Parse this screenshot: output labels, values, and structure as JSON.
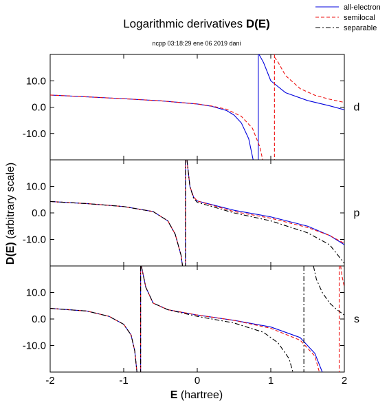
{
  "chart_data": {
    "type": "line",
    "title": "Logarithmic derivatives",
    "title_bold": "D(E)",
    "subtitle": "ncpp 03:18:29 ene 06 2019 dani",
    "xlabel_bold": "E",
    "xlabel_rest": " (hartree)",
    "ylabel_bold": "D(E)",
    "ylabel_rest": "  (arbitrary scale)",
    "xlim": [
      -2,
      2
    ],
    "ylim": [
      -20,
      20
    ],
    "x_ticks": [
      -2,
      -1,
      0,
      1,
      2
    ],
    "x_tick_labels": [
      "-2",
      "-1",
      "0",
      "1",
      "2"
    ],
    "y_ticks": [
      10,
      0,
      -10
    ],
    "y_tick_labels": [
      "10.0",
      "0.0",
      "-10.0"
    ],
    "legend_position": "top-right",
    "legend": [
      {
        "name": "all-electron",
        "color": "#0000dd",
        "dash": "solid"
      },
      {
        "name": "semilocal",
        "color": "#ee1111",
        "dash": "dashed"
      },
      {
        "name": "separable",
        "color": "#000000",
        "dash": "dashdot"
      }
    ],
    "panels": [
      {
        "label": "d",
        "series": [
          {
            "style": "all-electron",
            "points": [
              [
                -2,
                4.6
              ],
              [
                -1.5,
                3.9
              ],
              [
                -1,
                3.2
              ],
              [
                -0.5,
                2.4
              ],
              [
                0,
                1.2
              ],
              [
                0.2,
                0.3
              ],
              [
                0.4,
                -1.3
              ],
              [
                0.5,
                -3
              ],
              [
                0.6,
                -6
              ],
              [
                0.7,
                -12
              ],
              [
                0.76,
                -20
              ]
            ],
            "asymptote": 0.83
          },
          {
            "style": "all-electron",
            "points": [
              [
                0.84,
                20
              ],
              [
                0.9,
                17
              ],
              [
                1,
                10
              ],
              [
                1.2,
                5.5
              ],
              [
                1.5,
                2.5
              ],
              [
                1.8,
                0.5
              ],
              [
                2,
                -1
              ]
            ]
          },
          {
            "style": "semilocal",
            "points": [
              [
                -2,
                4.6
              ],
              [
                -1.5,
                3.9
              ],
              [
                -1,
                3.2
              ],
              [
                -0.5,
                2.4
              ],
              [
                0,
                1.2
              ],
              [
                0.2,
                0.4
              ],
              [
                0.4,
                -0.8
              ],
              [
                0.6,
                -3.5
              ],
              [
                0.75,
                -8
              ],
              [
                0.85,
                -15
              ],
              [
                0.89,
                -20
              ]
            ],
            "asymptote": 1.05
          },
          {
            "style": "semilocal",
            "points": [
              [
                1.05,
                19
              ],
              [
                1.1,
                17
              ],
              [
                1.2,
                12
              ],
              [
                1.4,
                7
              ],
              [
                1.6,
                4.5
              ],
              [
                1.8,
                3
              ],
              [
                2,
                1.8
              ]
            ]
          }
        ]
      },
      {
        "label": "p",
        "series": [
          {
            "style": "all-electron",
            "points": [
              [
                -2,
                4.3
              ],
              [
                -1.5,
                3.5
              ],
              [
                -1,
                2.4
              ],
              [
                -0.6,
                0.5
              ],
              [
                -0.4,
                -3
              ],
              [
                -0.3,
                -8
              ],
              [
                -0.22,
                -16
              ],
              [
                -0.2,
                -20
              ]
            ],
            "asymptote": -0.16
          },
          {
            "style": "all-electron",
            "points": [
              [
                -0.14,
                20
              ],
              [
                -0.1,
                10
              ],
              [
                -0.05,
                6
              ],
              [
                0,
                4.5
              ],
              [
                0.5,
                1
              ],
              [
                1,
                -1.5
              ],
              [
                1.5,
                -5
              ],
              [
                1.8,
                -8.5
              ],
              [
                2,
                -12
              ]
            ]
          },
          {
            "style": "semilocal",
            "points": [
              [
                -2,
                4.3
              ],
              [
                -1.5,
                3.5
              ],
              [
                -1,
                2.4
              ],
              [
                -0.6,
                0.5
              ],
              [
                -0.4,
                -3
              ],
              [
                -0.3,
                -8
              ],
              [
                -0.22,
                -16
              ],
              [
                -0.2,
                -20
              ]
            ],
            "asymptote": -0.16
          },
          {
            "style": "semilocal",
            "points": [
              [
                -0.14,
                20
              ],
              [
                -0.1,
                10
              ],
              [
                -0.05,
                6
              ],
              [
                0,
                4.5
              ],
              [
                0.5,
                0.5
              ],
              [
                1,
                -2
              ],
              [
                1.5,
                -5.5
              ],
              [
                1.8,
                -8.5
              ],
              [
                2,
                -11.5
              ]
            ]
          },
          {
            "style": "separable",
            "points": [
              [
                -2,
                4.3
              ],
              [
                -1.5,
                3.5
              ],
              [
                -1,
                2.4
              ],
              [
                -0.6,
                0.5
              ],
              [
                -0.4,
                -3
              ],
              [
                -0.3,
                -8
              ],
              [
                -0.22,
                -16
              ],
              [
                -0.2,
                -20
              ]
            ],
            "asymptote": -0.16
          },
          {
            "style": "separable",
            "points": [
              [
                -0.14,
                20
              ],
              [
                -0.1,
                10
              ],
              [
                -0.05,
                5.5
              ],
              [
                0,
                4
              ],
              [
                0.5,
                0
              ],
              [
                1,
                -3
              ],
              [
                1.5,
                -7.5
              ],
              [
                1.8,
                -12
              ],
              [
                2,
                -19
              ]
            ]
          }
        ]
      },
      {
        "label": "s",
        "series": [
          {
            "style": "all-electron",
            "points": [
              [
                -2,
                4
              ],
              [
                -1.5,
                3
              ],
              [
                -1.2,
                1
              ],
              [
                -1,
                -2
              ],
              [
                -0.9,
                -6
              ],
              [
                -0.85,
                -12
              ],
              [
                -0.82,
                -20
              ]
            ],
            "asymptote": -0.77
          },
          {
            "style": "all-electron",
            "points": [
              [
                -0.76,
                20
              ],
              [
                -0.7,
                12
              ],
              [
                -0.6,
                6
              ],
              [
                -0.4,
                3.5
              ],
              [
                0,
                1.5
              ],
              [
                0.5,
                -0.5
              ],
              [
                1,
                -3
              ],
              [
                1.4,
                -7
              ],
              [
                1.6,
                -13
              ],
              [
                1.7,
                -20
              ]
            ]
          },
          {
            "style": "semilocal",
            "points": [
              [
                -2,
                4
              ],
              [
                -1.5,
                3
              ],
              [
                -1.2,
                1
              ],
              [
                -1,
                -2
              ],
              [
                -0.9,
                -6
              ],
              [
                -0.85,
                -12
              ],
              [
                -0.82,
                -20
              ]
            ],
            "asymptote": -0.77
          },
          {
            "style": "semilocal",
            "points": [
              [
                -0.76,
                20
              ],
              [
                -0.7,
                12
              ],
              [
                -0.6,
                6
              ],
              [
                -0.4,
                3.5
              ],
              [
                0,
                1.5
              ],
              [
                0.5,
                -0.5
              ],
              [
                1,
                -3.5
              ],
              [
                1.4,
                -8
              ],
              [
                1.6,
                -14
              ],
              [
                1.66,
                -20
              ]
            ],
            "asymptote": 1.93
          },
          {
            "style": "semilocal",
            "points": [
              [
                1.95,
                20
              ],
              [
                1.97,
                16
              ],
              [
                2,
                12
              ]
            ]
          },
          {
            "style": "separable",
            "points": [
              [
                -2,
                4
              ],
              [
                -1.5,
                3
              ],
              [
                -1.2,
                1
              ],
              [
                -1,
                -2
              ],
              [
                -0.9,
                -6
              ],
              [
                -0.85,
                -12
              ],
              [
                -0.82,
                -20
              ]
            ],
            "asymptote": -0.77
          },
          {
            "style": "separable",
            "points": [
              [
                -0.76,
                20
              ],
              [
                -0.7,
                12
              ],
              [
                -0.6,
                6
              ],
              [
                -0.4,
                3.5
              ],
              [
                0,
                1
              ],
              [
                0.5,
                -1.5
              ],
              [
                0.9,
                -5
              ],
              [
                1.1,
                -9
              ],
              [
                1.25,
                -15
              ],
              [
                1.3,
                -20
              ]
            ],
            "asymptote": 1.45
          },
          {
            "style": "separable",
            "points": [
              [
                1.58,
                20
              ],
              [
                1.62,
                15
              ],
              [
                1.7,
                10
              ],
              [
                1.8,
                6
              ],
              [
                1.9,
                3.5
              ],
              [
                2,
                1.5
              ]
            ]
          }
        ]
      }
    ]
  }
}
